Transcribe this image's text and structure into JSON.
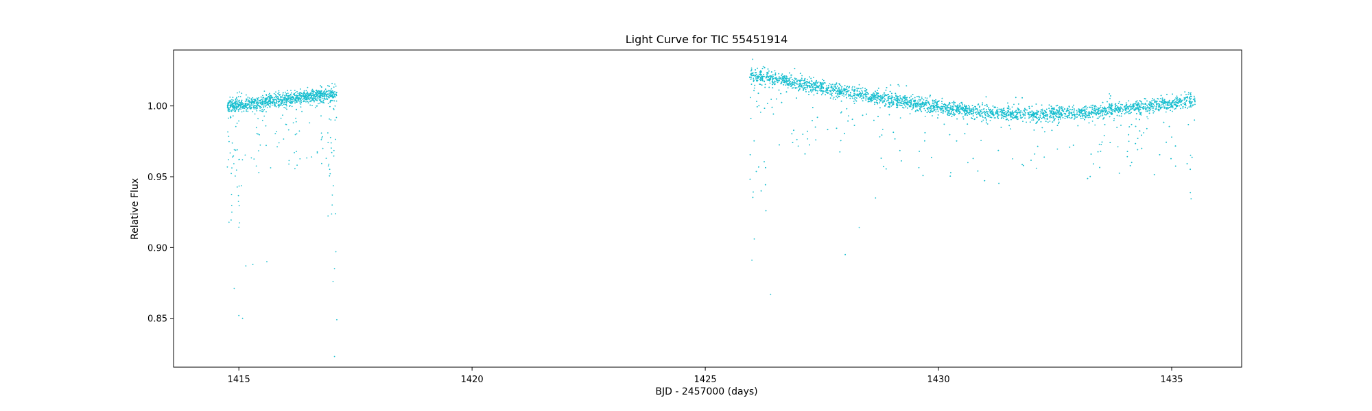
{
  "chart_data": {
    "type": "scatter",
    "title": "Light Curve for TIC 55451914",
    "xlabel": "BJD - 2457000 (days)",
    "ylabel": "Relative Flux",
    "xlim": [
      1413.6,
      1436.5
    ],
    "ylim": [
      0.8155,
      1.0395
    ],
    "xticks": [
      1415,
      1420,
      1425,
      1430,
      1435
    ],
    "xtick_labels": [
      "1415",
      "1420",
      "1425",
      "1430",
      "1435"
    ],
    "yticks": [
      0.85,
      0.9,
      0.95,
      1.0
    ],
    "ytick_labels": [
      "0.85",
      "0.90",
      "0.95",
      "1.00"
    ],
    "grid": false,
    "marker_color": "#17becf",
    "segments": [
      {
        "x_start": 1414.75,
        "x_end": 1417.1
      },
      {
        "x_start": 1425.95,
        "x_end": 1435.5
      }
    ],
    "trend": [
      {
        "x": 1414.75,
        "y": 1.0
      },
      {
        "x": 1415.5,
        "y": 1.002
      },
      {
        "x": 1416.3,
        "y": 1.006
      },
      {
        "x": 1417.0,
        "y": 1.008
      },
      {
        "x": 1425.95,
        "y": 1.022
      },
      {
        "x": 1427.0,
        "y": 1.016
      },
      {
        "x": 1428.0,
        "y": 1.01
      },
      {
        "x": 1429.0,
        "y": 1.004
      },
      {
        "x": 1430.0,
        "y": 0.999
      },
      {
        "x": 1431.0,
        "y": 0.995
      },
      {
        "x": 1432.0,
        "y": 0.994
      },
      {
        "x": 1433.0,
        "y": 0.995
      },
      {
        "x": 1434.0,
        "y": 0.998
      },
      {
        "x": 1435.5,
        "y": 1.004
      }
    ],
    "outliers": [
      {
        "x": 1414.9,
        "y": 0.871
      },
      {
        "x": 1415.0,
        "y": 0.852
      },
      {
        "x": 1415.08,
        "y": 0.85
      },
      {
        "x": 1415.15,
        "y": 0.887
      },
      {
        "x": 1415.3,
        "y": 0.888
      },
      {
        "x": 1415.6,
        "y": 0.89
      },
      {
        "x": 1416.8,
        "y": 0.97
      },
      {
        "x": 1417.05,
        "y": 0.823
      },
      {
        "x": 1417.1,
        "y": 0.849
      },
      {
        "x": 1417.02,
        "y": 0.876
      },
      {
        "x": 1417.05,
        "y": 0.885
      },
      {
        "x": 1417.08,
        "y": 0.897
      },
      {
        "x": 1417.0,
        "y": 0.93
      },
      {
        "x": 1426.0,
        "y": 0.891
      },
      {
        "x": 1426.05,
        "y": 0.906
      },
      {
        "x": 1426.4,
        "y": 0.867
      },
      {
        "x": 1426.3,
        "y": 0.926
      },
      {
        "x": 1428.0,
        "y": 0.895
      },
      {
        "x": 1428.3,
        "y": 0.914
      },
      {
        "x": 1428.65,
        "y": 0.935
      },
      {
        "x": 1432.1,
        "y": 0.956
      },
      {
        "x": 1434.4,
        "y": 0.981
      },
      {
        "x": 1435.0,
        "y": 0.978
      }
    ]
  }
}
